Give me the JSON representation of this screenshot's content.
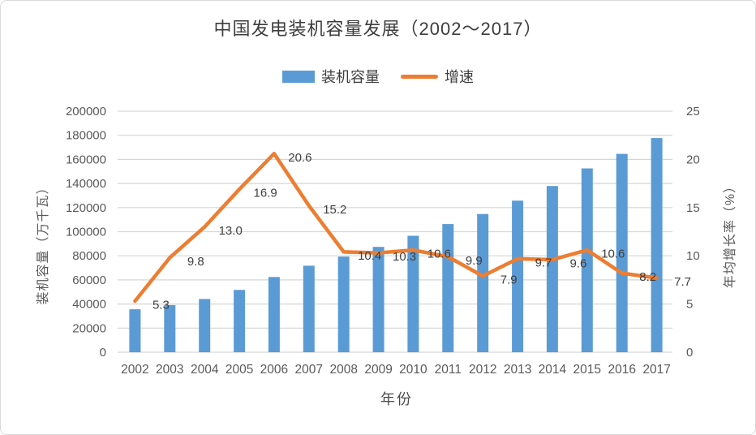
{
  "chart_data": {
    "type": "combo-bar-line",
    "title": "中国发电装机容量发展（2002～2017）",
    "categories": [
      "2002",
      "2003",
      "2004",
      "2005",
      "2006",
      "2007",
      "2008",
      "2009",
      "2010",
      "2011",
      "2012",
      "2013",
      "2014",
      "2015",
      "2016",
      "2017"
    ],
    "series": [
      {
        "name": "装机容量",
        "type": "bar",
        "axis": "left",
        "color": "#5B9BD5",
        "values": [
          35600,
          39100,
          44200,
          51700,
          62400,
          71800,
          79300,
          87400,
          96600,
          106300,
          114700,
          125800,
          137900,
          152500,
          164600,
          177700
        ],
        "values_estimated_from_gridlines": true
      },
      {
        "name": "增速",
        "type": "line",
        "axis": "right",
        "color": "#ED7D31",
        "values": [
          5.3,
          9.8,
          13.0,
          16.9,
          20.6,
          15.2,
          10.4,
          10.3,
          10.6,
          9.9,
          7.9,
          9.7,
          9.6,
          10.6,
          8.2,
          7.7
        ],
        "point_labels": [
          "5.3",
          "9.8",
          "13.0",
          "16.9",
          "20.6",
          "15.2",
          "10.4",
          "10.3",
          "10.6",
          "9.9",
          "7.9",
          "9.7",
          "9.6",
          "10.6",
          "8.2",
          "7.7"
        ]
      }
    ],
    "left_axis": {
      "title": "装机容量（万千瓦）",
      "min": 0,
      "max": 200000,
      "tick_step": 20000,
      "ticks": [
        0,
        20000,
        40000,
        60000,
        80000,
        100000,
        120000,
        140000,
        160000,
        180000,
        200000
      ]
    },
    "right_axis": {
      "title": "年均增长率（%）",
      "min": 0,
      "max": 25,
      "tick_step": 5,
      "ticks": [
        0,
        5,
        10,
        15,
        20,
        25
      ]
    },
    "x_axis": {
      "title": "年份"
    },
    "grid": true,
    "legend_position": "top"
  },
  "colors": {
    "bar": "#5B9BD5",
    "line": "#ED7D31",
    "gridline": "#d6d6d6",
    "title_text": "#3d3d3d",
    "axis_text": "#595959",
    "data_label_text": "#3f3f3f",
    "frame_border": "#d9d9d9",
    "background": "#ffffff"
  }
}
